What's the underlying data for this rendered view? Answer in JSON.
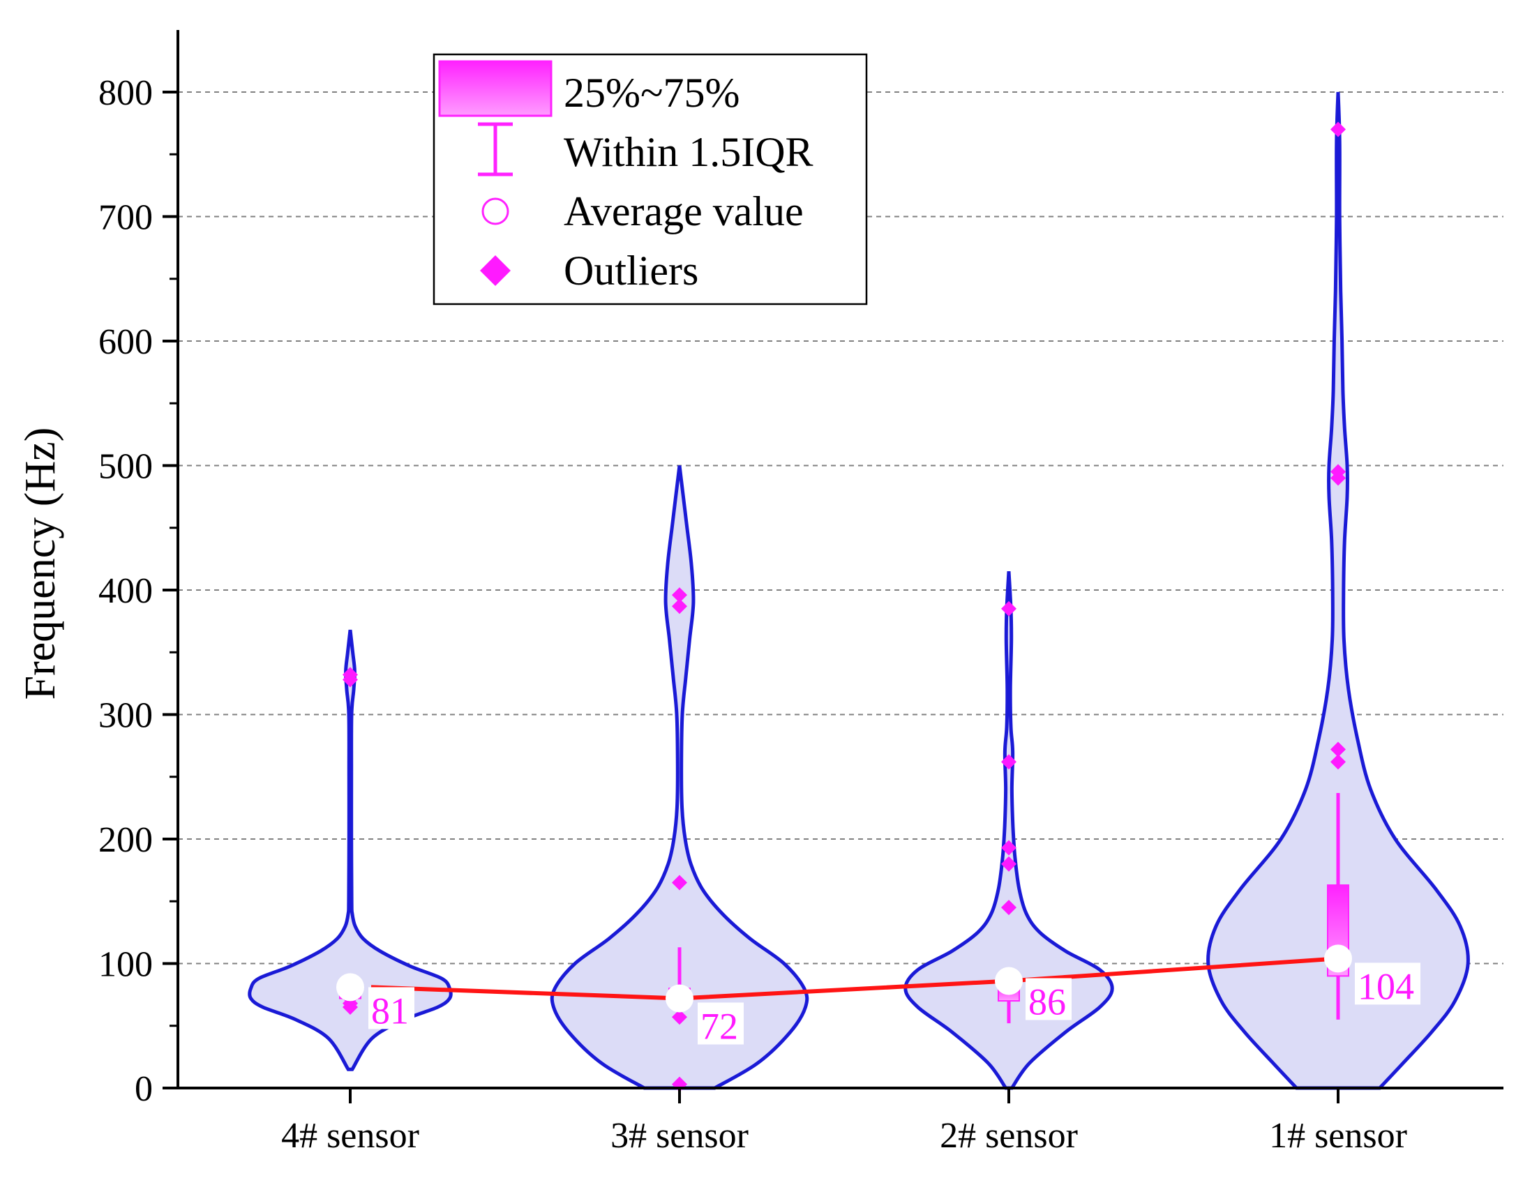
{
  "chart_data": {
    "type": "violin",
    "ylabel": "Frequency (Hz)",
    "xlabel": "",
    "ylim": [
      0,
      850
    ],
    "yticks": [
      0,
      100,
      200,
      300,
      400,
      500,
      600,
      700,
      800
    ],
    "grid": true,
    "legend_position": "top-left",
    "colors": {
      "violin_fill": "#dcdcf7",
      "violin_stroke": "#1a1ad6",
      "box": "#ff22ff",
      "outlier": "#ff1aff",
      "mean_line": "#ff1414"
    },
    "legend": [
      {
        "symbol": "box",
        "label": "25%~75%"
      },
      {
        "symbol": "whisker",
        "label": "Within 1.5IQR"
      },
      {
        "symbol": "circle",
        "label": "Average value"
      },
      {
        "symbol": "diamond",
        "label": "Outliers"
      }
    ],
    "categories": [
      "4# sensor",
      "3# sensor",
      "2# sensor",
      "1# sensor"
    ],
    "means": [
      81,
      72,
      86,
      104
    ],
    "mean_labels": [
      "81",
      "72",
      "86",
      "104"
    ],
    "series": [
      {
        "name": "4# sensor",
        "range": [
          15,
          368
        ],
        "q1": 72,
        "q3": 82,
        "whisker_low": 70,
        "whisker_high": 85,
        "outliers": [
          65,
          68,
          72,
          78,
          328,
          332
        ],
        "profile": [
          [
            15,
            0.02
          ],
          [
            40,
            0.22
          ],
          [
            55,
            0.55
          ],
          [
            65,
            0.88
          ],
          [
            72,
            1.0
          ],
          [
            80,
            1.0
          ],
          [
            88,
            0.92
          ],
          [
            98,
            0.6
          ],
          [
            110,
            0.3
          ],
          [
            120,
            0.13
          ],
          [
            130,
            0.05
          ],
          [
            140,
            0.02
          ],
          [
            150,
            0.015
          ],
          [
            200,
            0.012
          ],
          [
            250,
            0.012
          ],
          [
            300,
            0.014
          ],
          [
            320,
            0.035
          ],
          [
            335,
            0.045
          ],
          [
            350,
            0.025
          ],
          [
            368,
            0.0
          ]
        ]
      },
      {
        "name": "3# sensor",
        "range": [
          0,
          500
        ],
        "q1": 66,
        "q3": 80,
        "whisker_low": 60,
        "whisker_high": 113,
        "outliers": [
          3,
          57,
          165,
          387,
          396
        ],
        "profile": [
          [
            0,
            0.28
          ],
          [
            20,
            0.62
          ],
          [
            45,
            0.88
          ],
          [
            65,
            1.0
          ],
          [
            80,
            0.99
          ],
          [
            100,
            0.83
          ],
          [
            120,
            0.56
          ],
          [
            140,
            0.34
          ],
          [
            160,
            0.18
          ],
          [
            180,
            0.09
          ],
          [
            200,
            0.045
          ],
          [
            225,
            0.02
          ],
          [
            260,
            0.015
          ],
          [
            300,
            0.022
          ],
          [
            330,
            0.05
          ],
          [
            360,
            0.08
          ],
          [
            390,
            0.11
          ],
          [
            420,
            0.095
          ],
          [
            450,
            0.06
          ],
          [
            475,
            0.03
          ],
          [
            500,
            0.0
          ]
        ]
      },
      {
        "name": "2# sensor",
        "range": [
          0,
          415
        ],
        "q1": 70,
        "q3": 83,
        "whisker_low": 52,
        "whisker_high": 90,
        "outliers": [
          145,
          180,
          193,
          262,
          385
        ],
        "profile": [
          [
            0,
            0.03
          ],
          [
            20,
            0.2
          ],
          [
            45,
            0.55
          ],
          [
            65,
            0.88
          ],
          [
            80,
            1.0
          ],
          [
            95,
            0.88
          ],
          [
            110,
            0.55
          ],
          [
            125,
            0.3
          ],
          [
            140,
            0.17
          ],
          [
            160,
            0.1
          ],
          [
            185,
            0.06
          ],
          [
            210,
            0.04
          ],
          [
            240,
            0.03
          ],
          [
            270,
            0.038
          ],
          [
            290,
            0.02
          ],
          [
            320,
            0.015
          ],
          [
            360,
            0.025
          ],
          [
            385,
            0.02
          ],
          [
            415,
            0.0
          ]
        ]
      },
      {
        "name": "1# sensor",
        "range": [
          0,
          800
        ],
        "q1": 90,
        "q3": 163,
        "whisker_low": 55,
        "whisker_high": 237,
        "outliers": [
          262,
          272,
          490,
          495,
          770
        ],
        "profile": [
          [
            0,
            0.32
          ],
          [
            20,
            0.5
          ],
          [
            45,
            0.72
          ],
          [
            70,
            0.9
          ],
          [
            100,
            1.0
          ],
          [
            130,
            0.94
          ],
          [
            160,
            0.75
          ],
          [
            200,
            0.44
          ],
          [
            240,
            0.25
          ],
          [
            280,
            0.15
          ],
          [
            320,
            0.08
          ],
          [
            360,
            0.045
          ],
          [
            400,
            0.042
          ],
          [
            440,
            0.05
          ],
          [
            475,
            0.07
          ],
          [
            500,
            0.07
          ],
          [
            530,
            0.05
          ],
          [
            560,
            0.037
          ],
          [
            600,
            0.03
          ],
          [
            640,
            0.02
          ],
          [
            700,
            0.012
          ],
          [
            760,
            0.012
          ],
          [
            800,
            0.0
          ]
        ]
      }
    ]
  }
}
